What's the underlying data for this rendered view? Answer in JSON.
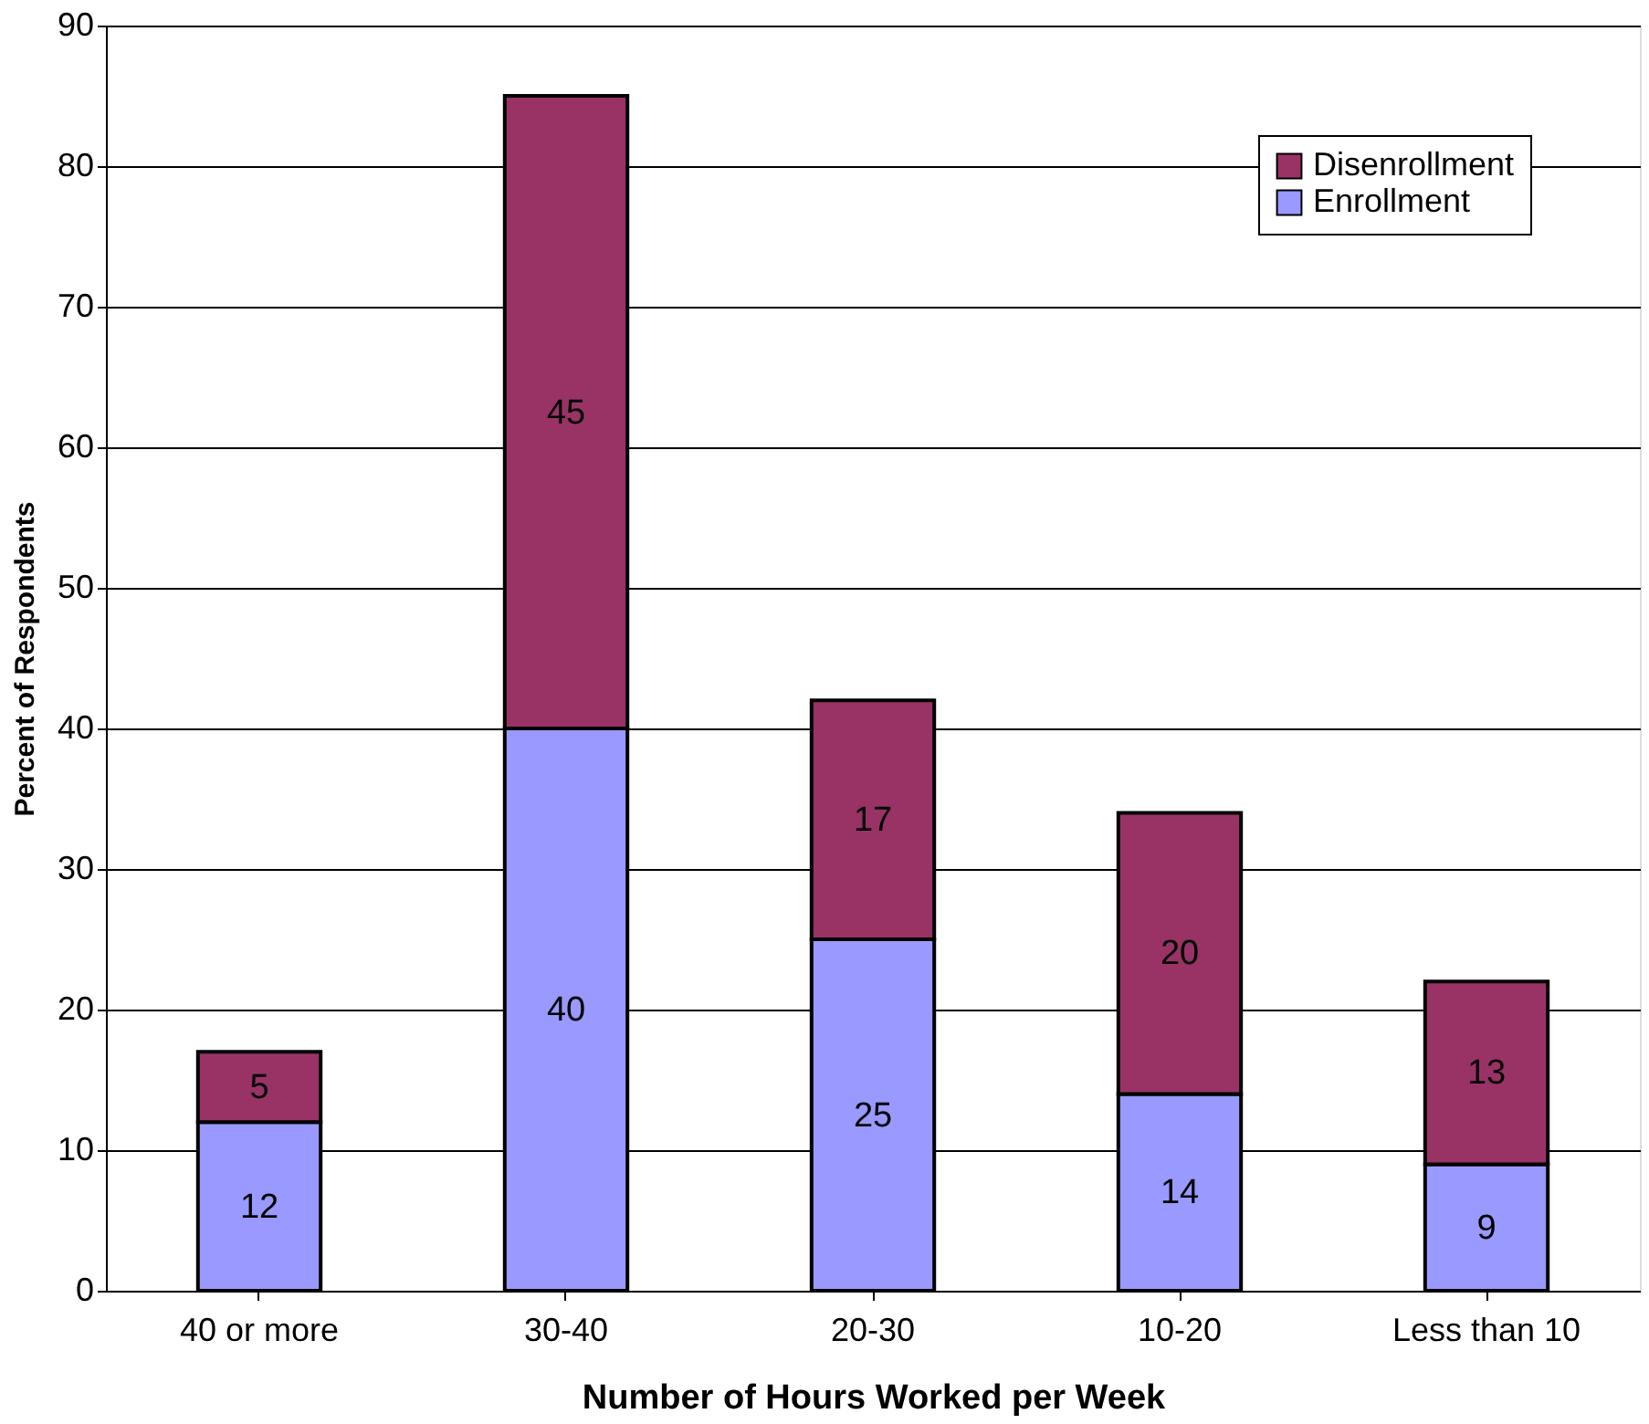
{
  "chart_data": {
    "type": "bar",
    "stacked": true,
    "xlabel": "Number of Hours Worked per Week",
    "ylabel": "Percent of Respondents",
    "categories": [
      "40 or more",
      "30-40",
      "20-30",
      "10-20",
      "Less than 10"
    ],
    "series": [
      {
        "name": "Enrollment",
        "color": "#9999ff",
        "values": [
          12,
          40,
          25,
          14,
          9
        ]
      },
      {
        "name": "Disenrollment",
        "color": "#993366",
        "values": [
          5,
          45,
          17,
          20,
          13
        ]
      }
    ],
    "ylim": [
      0,
      90
    ],
    "yticks": [
      0,
      10,
      20,
      30,
      40,
      50,
      60,
      70,
      80,
      90
    ],
    "grid": "y",
    "legend": "top right",
    "data_labels": true
  }
}
